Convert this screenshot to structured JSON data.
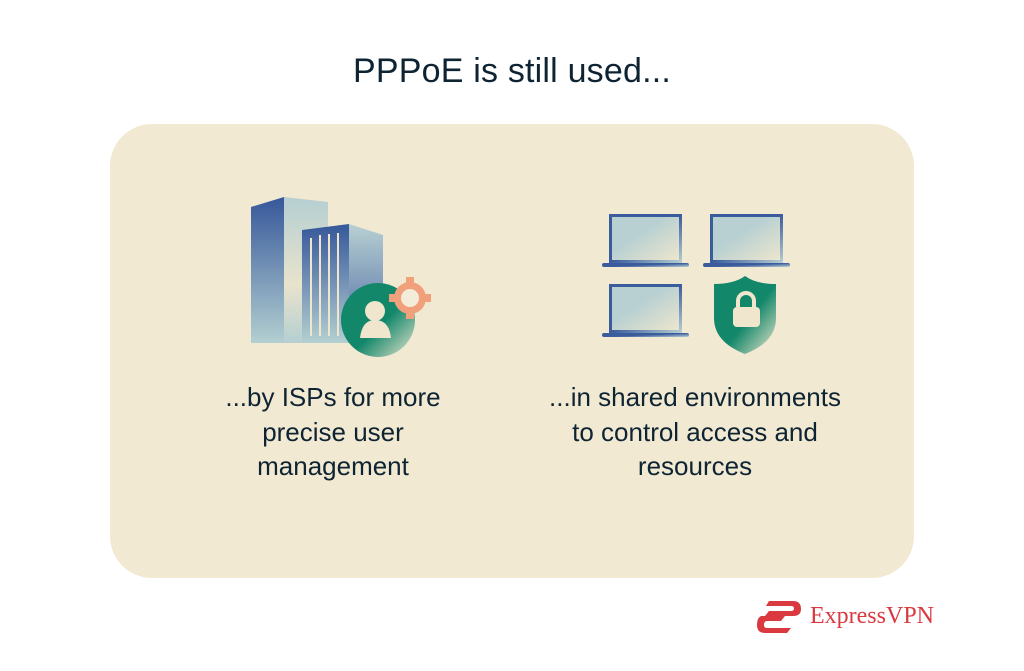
{
  "title": "PPPoE is still used...",
  "items": [
    {
      "caption": "...by ISPs for more precise user management",
      "icon": "office-buildings-user-gear-icon"
    },
    {
      "caption": "...in shared environments to control access and resources",
      "icon": "laptops-shield-lock-icon"
    }
  ],
  "brand": {
    "name": "ExpressVPN",
    "color": "#da3940"
  },
  "colors": {
    "card": "#f1e9d2",
    "blue": "#3a5b9c",
    "green": "#12876a",
    "orange": "#f0a07a"
  }
}
